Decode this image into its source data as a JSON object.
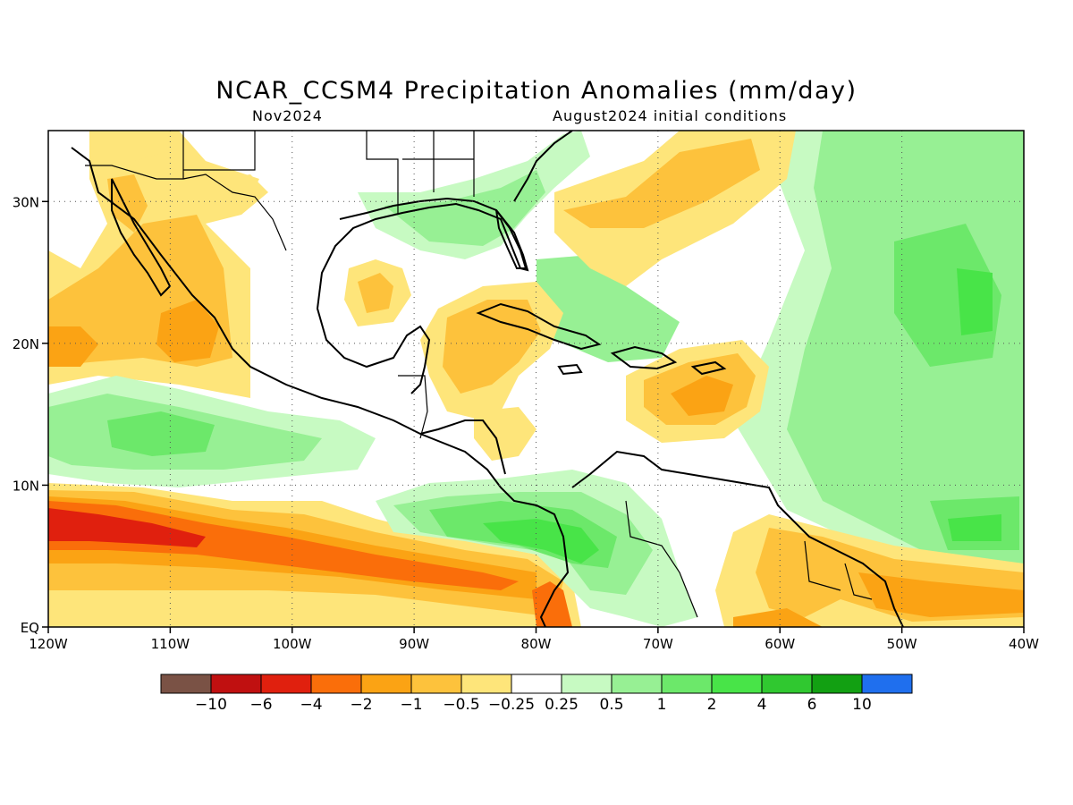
{
  "title": "NCAR_CCSM4 Precipitation Anomalies (mm/day)",
  "subtitle_left": "Nov2024",
  "subtitle_right": "August2024 initial conditions",
  "map": {
    "lon_range": [
      -120,
      -40
    ],
    "lat_range": [
      0,
      35
    ],
    "lon_ticks": [
      -120,
      -110,
      -100,
      -90,
      -80,
      -70,
      -60,
      -50,
      -40
    ],
    "lon_tick_labels": [
      "120W",
      "110W",
      "100W",
      "90W",
      "80W",
      "70W",
      "60W",
      "50W",
      "40W"
    ],
    "lat_ticks": [
      0,
      10,
      20,
      30
    ],
    "lat_tick_labels": [
      "EQ",
      "10N",
      "20N",
      "30N"
    ],
    "grid": "dotted"
  },
  "colorbar": {
    "colors": [
      "#7a5245",
      "#c01010",
      "#e0200e",
      "#fa6e0a",
      "#fba314",
      "#fdc23c",
      "#fee57a",
      "#ffffff",
      "#c7fac2",
      "#97f094",
      "#6ce86a",
      "#48e448",
      "#30c830",
      "#12a012",
      "#1f6fee"
    ],
    "labels": [
      "−10",
      "−6",
      "−4",
      "−2",
      "−1",
      "−0.5",
      "−0.25",
      "0.25",
      "0.5",
      "1",
      "2",
      "4",
      "6",
      "10"
    ]
  },
  "legend_colors": {
    "dry_strong": "#e0200e",
    "dry_mod": "#fa6e0a",
    "dry_light": "#fba314",
    "dry_weak": "#fdc23c",
    "dry_faint": "#fee57a",
    "wet_faint": "#c7fac2",
    "wet_weak": "#97f094",
    "wet_light": "#6ce86a",
    "wet_mod": "#48e448",
    "wet_strong": "#30c830"
  }
}
